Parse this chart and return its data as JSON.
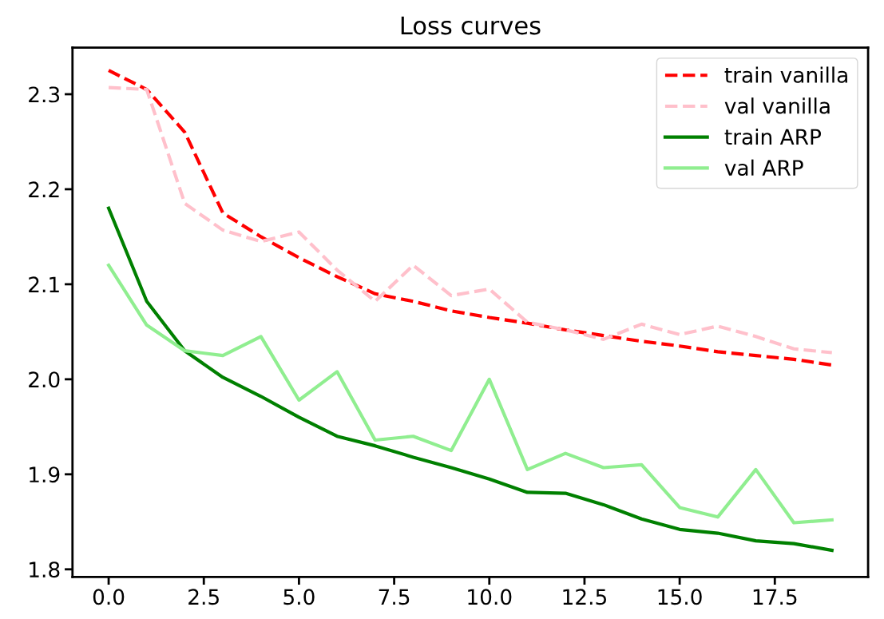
{
  "chart_data": {
    "type": "line",
    "title": "Loss curves",
    "x": [
      0,
      1,
      2,
      3,
      4,
      5,
      6,
      7,
      8,
      9,
      10,
      11,
      12,
      13,
      14,
      15,
      16,
      17,
      18,
      19
    ],
    "series": [
      {
        "name": "train vanilla",
        "color": "#ff0000",
        "line_style": "dashed",
        "values": [
          2.325,
          2.305,
          2.26,
          2.175,
          2.15,
          2.128,
          2.108,
          2.09,
          2.082,
          2.072,
          2.065,
          2.059,
          2.052,
          2.046,
          2.04,
          2.035,
          2.029,
          2.025,
          2.021,
          2.015
        ]
      },
      {
        "name": "val vanilla",
        "color": "#ffc0cb",
        "line_style": "dashed",
        "values": [
          2.307,
          2.305,
          2.185,
          2.157,
          2.145,
          2.155,
          2.115,
          2.082,
          2.12,
          2.088,
          2.095,
          2.06,
          2.052,
          2.042,
          2.058,
          2.047,
          2.056,
          2.045,
          2.032,
          2.028
        ]
      },
      {
        "name": "train ARP",
        "color": "#008000",
        "line_style": "solid",
        "values": [
          2.18,
          2.082,
          2.03,
          2.002,
          1.982,
          1.96,
          1.94,
          1.93,
          1.918,
          1.907,
          1.895,
          1.881,
          1.88,
          1.868,
          1.853,
          1.842,
          1.838,
          1.83,
          1.827,
          1.82
        ]
      },
      {
        "name": "val ARP",
        "color": "#90ee90",
        "line_style": "solid",
        "values": [
          2.12,
          2.057,
          2.03,
          2.025,
          2.045,
          1.978,
          2.008,
          1.936,
          1.94,
          1.925,
          2.0,
          1.905,
          1.922,
          1.907,
          1.91,
          1.865,
          1.855,
          1.905,
          1.849,
          1.852
        ]
      }
    ],
    "xlim": [
      -0.95,
      19.95
    ],
    "xticks": [
      {
        "value": 0,
        "label": "0.0"
      },
      {
        "value": 2.5,
        "label": "2.5"
      },
      {
        "value": 5,
        "label": "5.0"
      },
      {
        "value": 7.5,
        "label": "7.5"
      },
      {
        "value": 10,
        "label": "10.0"
      },
      {
        "value": 12.5,
        "label": "12.5"
      },
      {
        "value": 15,
        "label": "15.0"
      },
      {
        "value": 17.5,
        "label": "17.5"
      }
    ],
    "ylim": [
      1.792,
      2.349
    ],
    "yticks": [
      {
        "value": 1.8,
        "label": "1.8"
      },
      {
        "value": 1.9,
        "label": "1.9"
      },
      {
        "value": 2.0,
        "label": "2.0"
      },
      {
        "value": 2.1,
        "label": "2.1"
      },
      {
        "value": 2.2,
        "label": "2.2"
      },
      {
        "value": 2.3,
        "label": "2.3"
      }
    ],
    "legend": "upper right",
    "grid": false
  }
}
